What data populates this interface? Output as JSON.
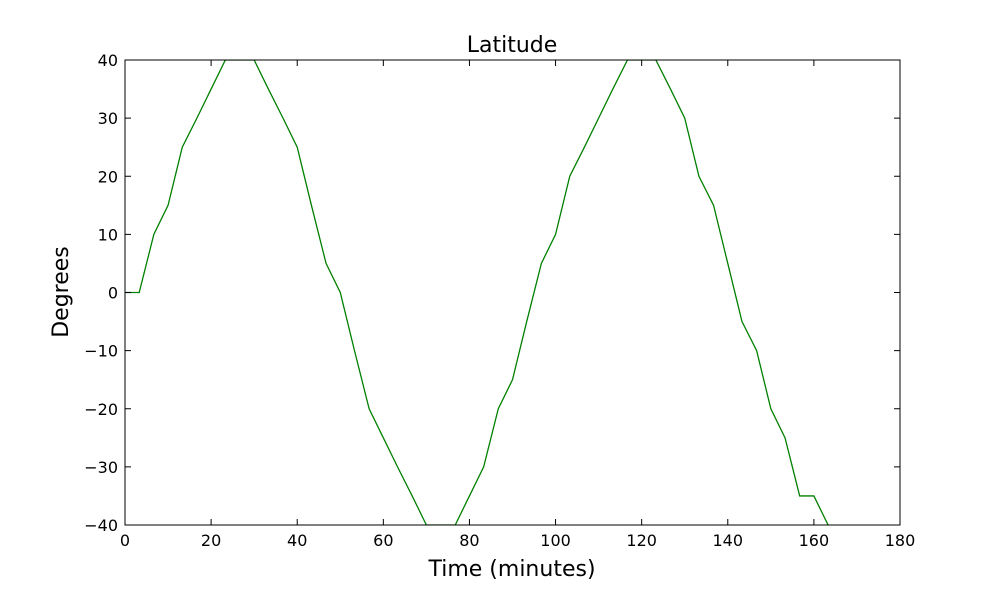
{
  "chart_data": {
    "type": "line",
    "title": "Latitude",
    "xlabel": "Time (minutes)",
    "ylabel": "Degrees",
    "xlim": [
      0,
      180
    ],
    "ylim": [
      -40,
      40
    ],
    "xticks": [
      0,
      20,
      40,
      60,
      80,
      100,
      120,
      140,
      160,
      180
    ],
    "yticks": [
      -40,
      -30,
      -20,
      -10,
      0,
      10,
      20,
      30,
      40
    ],
    "ytick_labels": [
      "−40",
      "−30",
      "−20",
      "−10",
      "0",
      "10",
      "20",
      "30",
      "40"
    ],
    "grid": false,
    "series": [
      {
        "color": "#008000",
        "x": [
          0,
          3.3,
          6.7,
          10,
          13.3,
          16.7,
          20,
          23.3,
          26.7,
          30,
          33.3,
          36.7,
          40,
          43.3,
          46.7,
          50,
          53.3,
          56.7,
          60,
          63.3,
          66.7,
          70,
          73.3,
          76.7,
          80,
          83.3,
          86.7,
          90,
          93.3,
          96.7,
          100,
          103.3,
          106.7,
          110,
          113.3,
          116.7,
          120,
          123.3,
          126.7,
          130,
          133.3,
          136.7,
          140,
          143.3,
          146.7,
          150,
          153.3,
          156.7,
          160,
          163.3
        ],
        "y": [
          0,
          0,
          10,
          15,
          25,
          30,
          35,
          40,
          40,
          40,
          35,
          30,
          25,
          15,
          5,
          0,
          -10,
          -20,
          -25,
          -30,
          -35,
          -40,
          -40,
          -40,
          -35,
          -30,
          -20,
          -15,
          -5,
          5,
          10,
          20,
          25,
          30,
          35,
          40,
          40,
          40,
          35,
          30,
          20,
          15,
          5,
          -5,
          -10,
          -20,
          -25,
          -35,
          -35,
          -40
        ]
      }
    ]
  }
}
